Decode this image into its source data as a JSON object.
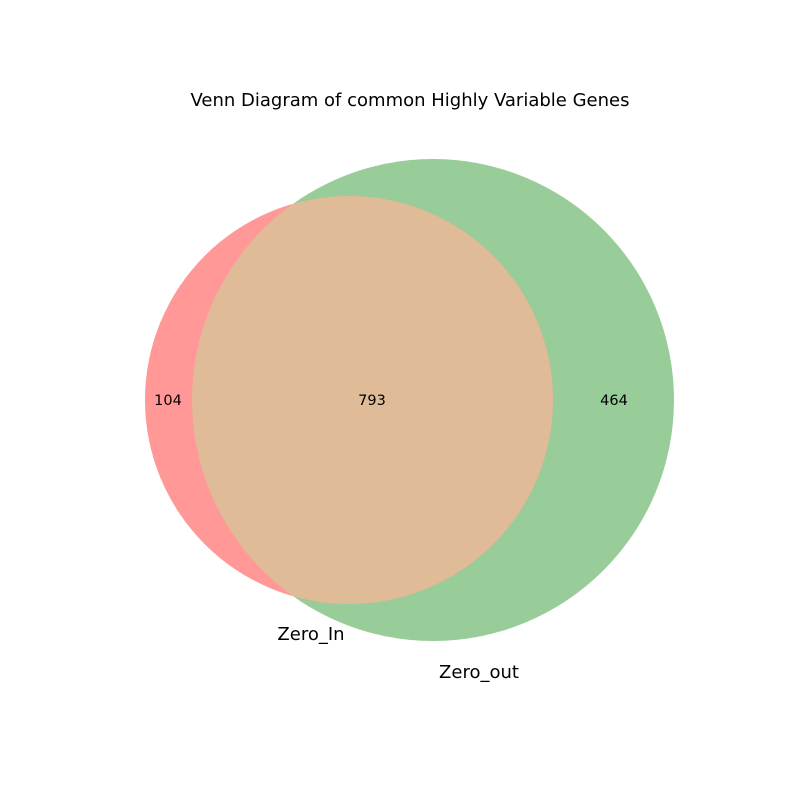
{
  "title": "Venn Diagram of common Highly Variable Genes",
  "colors": {
    "set_a": "#ff9896",
    "set_b": "#98cc98",
    "intersection": "#dfbb98"
  },
  "chart_data": {
    "type": "venn",
    "title": "Venn Diagram of common Highly Variable Genes",
    "sets": [
      {
        "name": "Zero_In",
        "only": "104"
      },
      {
        "name": "Zero_out",
        "only": "464"
      }
    ],
    "intersection": "793"
  }
}
